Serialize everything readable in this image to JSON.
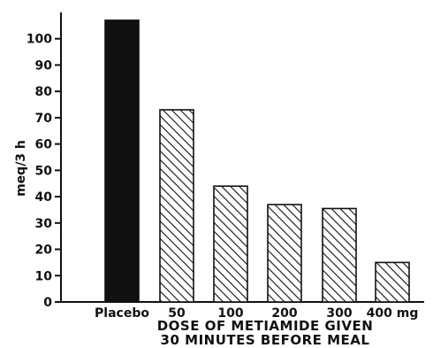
{
  "chart_data": {
    "type": "bar",
    "categories": [
      "Placebo",
      "50",
      "100",
      "200",
      "300",
      "400 mg"
    ],
    "values": [
      107,
      73,
      44,
      37,
      35.5,
      15
    ],
    "bar_styles": [
      "solid",
      "hatched",
      "hatched",
      "hatched",
      "hatched",
      "hatched"
    ],
    "title": "",
    "xlabel_lines": [
      "DOSE OF METIAMIDE GIVEN",
      "30 MINUTES BEFORE MEAL"
    ],
    "ylabel": "meq/3 h",
    "ylim": [
      0,
      110
    ],
    "yticks": [
      0,
      10,
      20,
      30,
      40,
      50,
      60,
      70,
      80,
      90,
      100
    ],
    "grid": false,
    "colors": {
      "solid": "#111111",
      "hatch": "#111111",
      "background": "#ffffff"
    }
  }
}
